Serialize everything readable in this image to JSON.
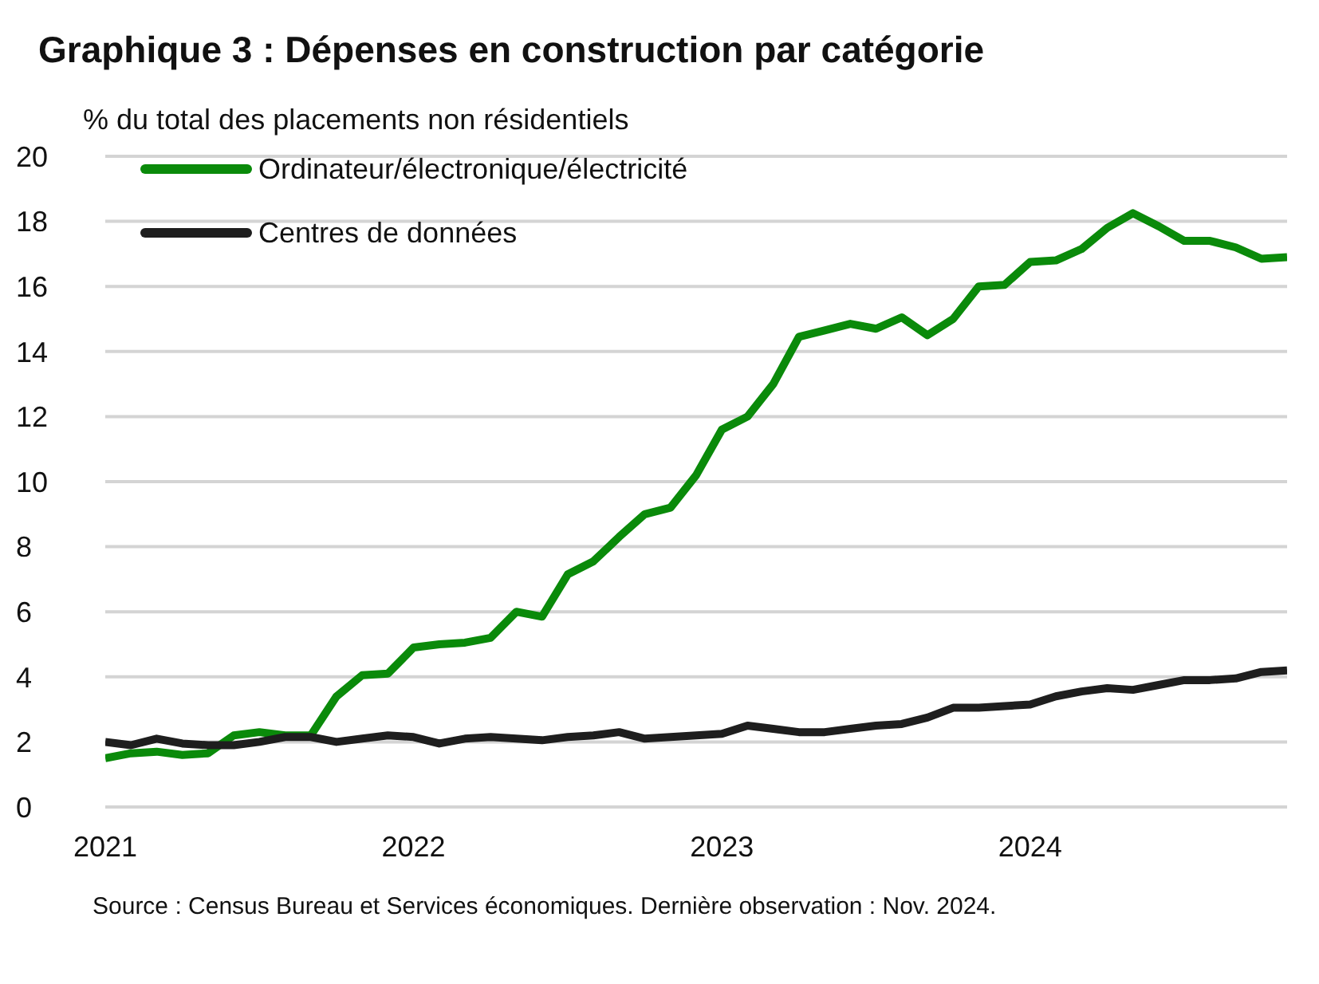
{
  "chart_data": {
    "type": "line",
    "title": "Graphique 3 : Dépenses en construction par catégorie",
    "ylabel": "% du total des placements non résidentiels",
    "x": [
      "2021-01",
      "2021-02",
      "2021-03",
      "2021-04",
      "2021-05",
      "2021-06",
      "2021-07",
      "2021-08",
      "2021-09",
      "2021-10",
      "2021-11",
      "2021-12",
      "2022-01",
      "2022-02",
      "2022-03",
      "2022-04",
      "2022-05",
      "2022-06",
      "2022-07",
      "2022-08",
      "2022-09",
      "2022-10",
      "2022-11",
      "2022-12",
      "2023-01",
      "2023-02",
      "2023-03",
      "2023-04",
      "2023-05",
      "2023-06",
      "2023-07",
      "2023-08",
      "2023-09",
      "2023-10",
      "2023-11",
      "2023-12",
      "2024-01",
      "2024-02",
      "2024-03",
      "2024-04",
      "2024-05",
      "2024-06",
      "2024-07",
      "2024-08",
      "2024-09",
      "2024-10",
      "2024-11"
    ],
    "series": [
      {
        "name": "Ordinateur/électronique/électricité",
        "color": "#0a8a0a",
        "values": [
          1.5,
          1.65,
          1.7,
          1.6,
          1.65,
          2.2,
          2.3,
          2.2,
          2.2,
          3.4,
          4.05,
          4.1,
          4.9,
          5.0,
          5.05,
          5.2,
          6.0,
          5.85,
          7.15,
          7.55,
          8.3,
          9.0,
          9.2,
          10.2,
          11.6,
          12.0,
          13.0,
          14.45,
          14.65,
          14.85,
          14.7,
          15.05,
          14.5,
          15.0,
          16.0,
          16.05,
          16.75,
          16.8,
          17.15,
          17.8,
          18.25,
          17.85,
          17.4,
          17.4,
          17.2,
          16.85,
          16.9
        ]
      },
      {
        "name": "Centres de données",
        "color": "#1e1e1e",
        "values": [
          2.0,
          1.9,
          2.1,
          1.95,
          1.9,
          1.9,
          2.0,
          2.15,
          2.15,
          2.0,
          2.1,
          2.2,
          2.15,
          1.95,
          2.1,
          2.15,
          2.1,
          2.05,
          2.15,
          2.2,
          2.3,
          2.1,
          2.15,
          2.2,
          2.25,
          2.5,
          2.4,
          2.3,
          2.3,
          2.4,
          2.5,
          2.55,
          2.75,
          3.05,
          3.05,
          3.1,
          3.15,
          3.4,
          3.55,
          3.65,
          3.6,
          3.75,
          3.9,
          3.9,
          3.95,
          4.15,
          4.2
        ]
      }
    ],
    "xlim": [
      "2021-01",
      "2024-11"
    ],
    "xticks": [
      {
        "value": "2021-01",
        "label": "2021"
      },
      {
        "value": "2022-01",
        "label": "2022"
      },
      {
        "value": "2023-01",
        "label": "2023"
      },
      {
        "value": "2024-01",
        "label": "2024"
      }
    ],
    "ylim": [
      0,
      20
    ],
    "yticks": [
      0,
      2,
      4,
      6,
      8,
      10,
      12,
      14,
      16,
      18,
      20
    ],
    "grid": "y",
    "legend": "top left",
    "marker": "none",
    "line_style": "solid",
    "annotations": [
      "Source : Census Bureau et Services économiques. Dernière observation : Nov. 2024."
    ]
  }
}
